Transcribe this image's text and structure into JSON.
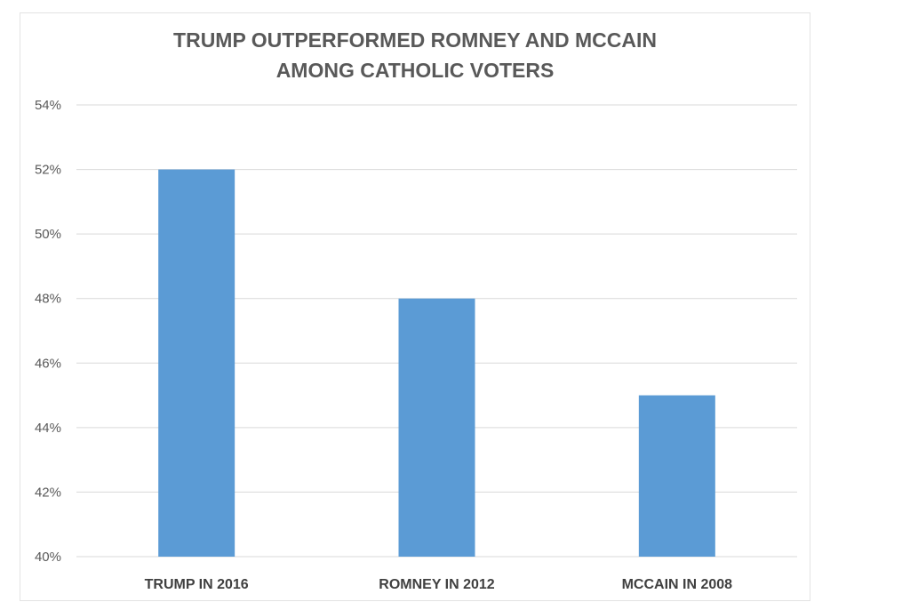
{
  "chart_data": {
    "type": "bar",
    "title_lines": [
      "TRUMP OUTPERFORMED ROMNEY AND MCCAIN",
      "AMONG CATHOLIC VOTERS"
    ],
    "categories": [
      "TRUMP IN 2016",
      "ROMNEY IN 2012",
      "MCCAIN IN 2008"
    ],
    "values": [
      52,
      48,
      45
    ],
    "xlabel": "",
    "ylabel": "",
    "ylim": [
      40,
      54
    ],
    "yticks": [
      40,
      42,
      44,
      46,
      48,
      50,
      52,
      54
    ],
    "ytick_labels": [
      "40%",
      "42%",
      "44%",
      "46%",
      "48%",
      "50%",
      "52%",
      "54%"
    ],
    "grid": true,
    "bar_color": "#5b9bd5",
    "grid_color": "#d9d9d9",
    "legend": "none"
  }
}
